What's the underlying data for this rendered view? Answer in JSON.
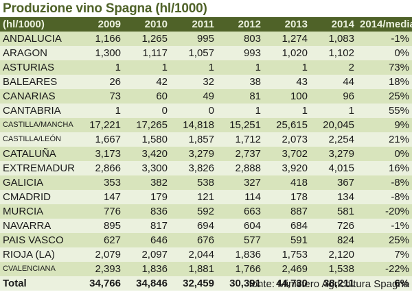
{
  "title": "Produzione vino Spagna (hl/1000)",
  "table": {
    "headers": [
      "(hl/1000)",
      "2009",
      "2010",
      "2011",
      "2012",
      "2013",
      "2014",
      "2014/media"
    ],
    "rows": [
      {
        "region": "ANDALUCIA",
        "small": false,
        "values": [
          "1,166",
          "1,265",
          "995",
          "803",
          "1,274",
          "1,083",
          "-1%"
        ]
      },
      {
        "region": "ARAGON",
        "small": false,
        "values": [
          "1,300",
          "1,117",
          "1,057",
          "993",
          "1,020",
          "1,102",
          "0%"
        ]
      },
      {
        "region": "ASTURIAS",
        "small": false,
        "values": [
          "1",
          "1",
          "1",
          "1",
          "1",
          "2",
          "73%"
        ]
      },
      {
        "region": "BALEARES",
        "small": false,
        "values": [
          "26",
          "42",
          "32",
          "38",
          "43",
          "44",
          "18%"
        ]
      },
      {
        "region": "CANARIAS",
        "small": false,
        "values": [
          "73",
          "60",
          "49",
          "81",
          "100",
          "96",
          "25%"
        ]
      },
      {
        "region": "CANTABRIA",
        "small": false,
        "values": [
          "1",
          "0",
          "0",
          "1",
          "1",
          "1",
          "55%"
        ]
      },
      {
        "region": "CASTILLA/MANCHA",
        "small": true,
        "values": [
          "17,221",
          "17,265",
          "14,818",
          "15,251",
          "25,615",
          "20,045",
          "9%"
        ]
      },
      {
        "region": "CASTILLA/LEÓN",
        "small": true,
        "values": [
          "1,667",
          "1,580",
          "1,857",
          "1,712",
          "2,073",
          "2,254",
          "21%"
        ]
      },
      {
        "region": "CATALUÑA",
        "small": false,
        "values": [
          "3,173",
          "3,420",
          "3,279",
          "2,737",
          "3,702",
          "3,279",
          "0%"
        ]
      },
      {
        "region": "EXTREMADUR",
        "small": false,
        "values": [
          "2,866",
          "3,300",
          "3,826",
          "2,888",
          "3,920",
          "4,015",
          "16%"
        ]
      },
      {
        "region": "GALICIA",
        "small": false,
        "values": [
          "353",
          "382",
          "538",
          "327",
          "418",
          "367",
          "-8%"
        ]
      },
      {
        "region": "CMADRID",
        "small": false,
        "values": [
          "147",
          "179",
          "121",
          "114",
          "178",
          "134",
          "-8%"
        ]
      },
      {
        "region": "MURCIA",
        "small": false,
        "values": [
          "776",
          "836",
          "592",
          "663",
          "887",
          "581",
          "-20%"
        ]
      },
      {
        "region": "NAVARRA",
        "small": false,
        "values": [
          "895",
          "817",
          "694",
          "604",
          "684",
          "726",
          "-1%"
        ]
      },
      {
        "region": "PAIS VASCO",
        "small": false,
        "values": [
          "627",
          "646",
          "676",
          "577",
          "591",
          "824",
          "25%"
        ]
      },
      {
        "region": "RIOJA (LA)",
        "small": false,
        "values": [
          "2,079",
          "2,097",
          "2,044",
          "1,836",
          "1,753",
          "2,120",
          "7%"
        ]
      },
      {
        "region": "CVALENCIANA",
        "small": true,
        "values": [
          "2,393",
          "1,836",
          "1,881",
          "1,766",
          "2,469",
          "1,538",
          "-22%"
        ]
      }
    ],
    "total": {
      "label": "Total",
      "values": [
        "34,766",
        "34,846",
        "32,459",
        "30,391",
        "44,730",
        "38,211",
        "6%"
      ]
    }
  },
  "source": "fonte: Ministero Agricoltura Spagna",
  "colors": {
    "title_text": "#4f6228",
    "header_bg": "#4f6228",
    "header_text": "#ebf1de",
    "row_dark": "#d8e4bc",
    "row_light": "#ebf1de"
  }
}
